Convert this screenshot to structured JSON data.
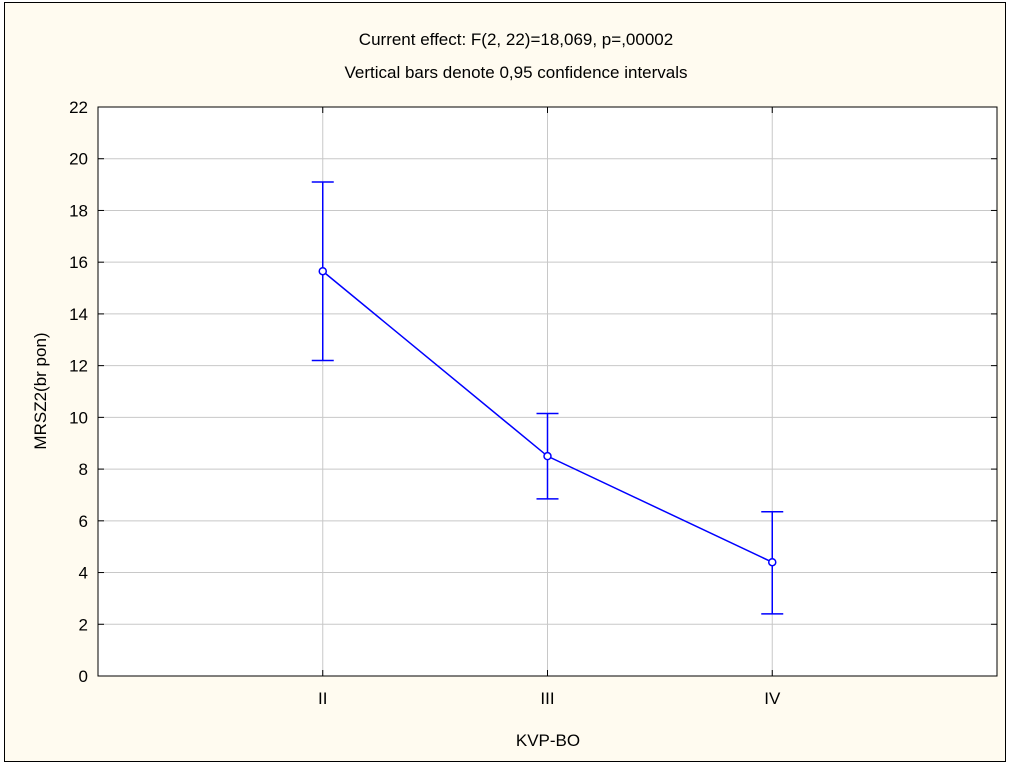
{
  "chart_data": {
    "type": "line",
    "title": "Current effect: F(2, 22)=18,069, p=,00002",
    "subtitle": "Vertical bars denote 0,95 confidence intervals",
    "xlabel": "KVP-BO",
    "ylabel": "MRSZ2(br pon)",
    "categories": [
      "II",
      "III",
      "IV"
    ],
    "series": [
      {
        "values": [
          15.65,
          8.5,
          4.4
        ],
        "ci_lower": [
          12.2,
          6.85,
          2.4
        ],
        "ci_upper": [
          19.1,
          10.15,
          6.35
        ]
      }
    ],
    "ylim": [
      0,
      22
    ],
    "yticks": [
      "0",
      "2",
      "4",
      "6",
      "8",
      "10",
      "12",
      "14",
      "16",
      "18",
      "20",
      "22"
    ],
    "grid": true,
    "colors": {
      "series": "#0000ff",
      "grid": "#c8c8c8",
      "background": "#fffbf0"
    }
  }
}
